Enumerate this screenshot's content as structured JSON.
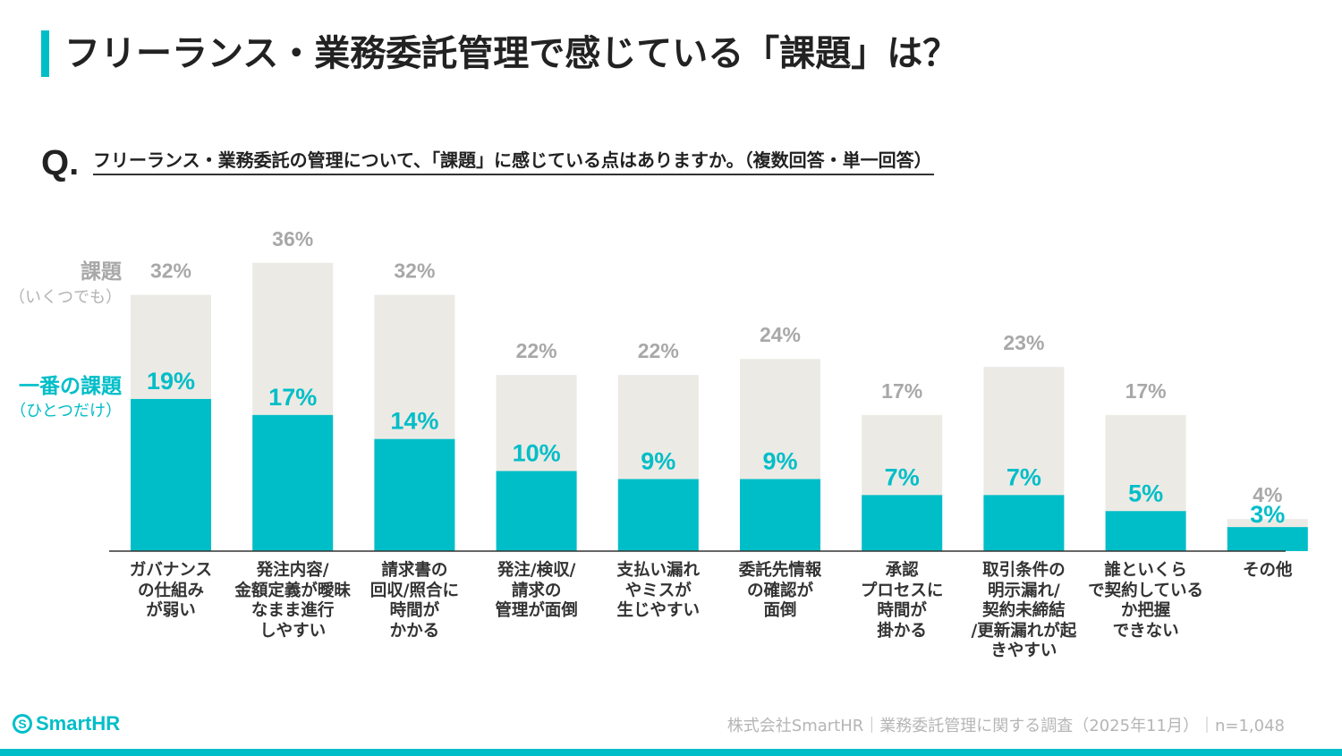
{
  "title": "フリーランス・業務委託管理で感じている「課題」は？",
  "question": {
    "mark": "Q.",
    "text": "フリーランス・業務委託の管理について、「課題」に感じている点はありますか。（複数回答・単一回答）"
  },
  "legend": {
    "all_label": "課題",
    "all_sub": "（いくつでも）",
    "top_label": "一番の課題",
    "top_sub": "（ひとつだけ）"
  },
  "colors": {
    "accent": "#00bec8",
    "all_bar": "#eceae5",
    "all_label": "#a8a8a8",
    "baseline": "#333333"
  },
  "chart_data": {
    "type": "bar",
    "title": "フリーランス・業務委託管理で感じている「課題」は？",
    "unit": "%",
    "ylim": [
      0,
      36
    ],
    "categories": [
      "ガバナンス\nの仕組み\nが弱い",
      "発注内容/\n金額定義が曖昧\nなまま進行\nしやすい",
      "請求書の\n回収/照合に\n時間が\nかかる",
      "発注/検収/\n請求の\n管理が面倒",
      "支払い漏れ\nやミスが\n生じやすい",
      "委託先情報\nの確認が\n面倒",
      "承認\nプロセスに\n時間が\n掛かる",
      "取引条件の\n明示漏れ/\n契約未締結\n/更新漏れが起\nきやすい",
      "誰といくら\nで契約している\nか把握\nできない",
      "その他"
    ],
    "series": [
      {
        "name": "課題（いくつでも）",
        "values": [
          32,
          36,
          32,
          22,
          22,
          24,
          17,
          23,
          17,
          4
        ],
        "labels": [
          "32%",
          "36%",
          "32%",
          "22%",
          "22%",
          "24%",
          "17%",
          "23%",
          "17%",
          "4%"
        ]
      },
      {
        "name": "一番の課題（ひとつだけ）",
        "values": [
          19,
          17,
          14,
          10,
          9,
          9,
          7,
          7,
          5,
          3
        ],
        "labels": [
          "19%",
          "17%",
          "14%",
          "10%",
          "9%",
          "9%",
          "7%",
          "7%",
          "5%",
          "3%"
        ]
      }
    ]
  },
  "footer": {
    "logo_symbol": "S",
    "logo_text": "SmartHR",
    "source": "株式会社SmartHR｜業務委託管理に関する調査（2025年11月）｜n=1,048"
  }
}
